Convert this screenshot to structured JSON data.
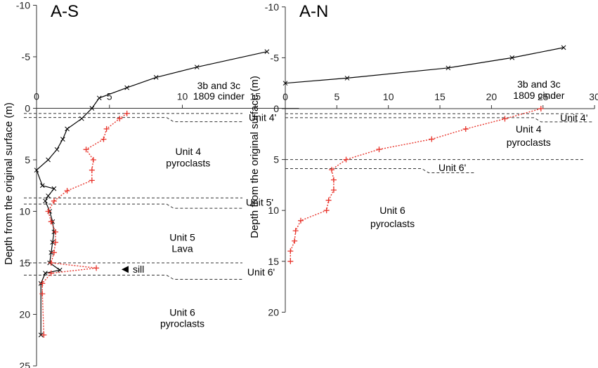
{
  "chart_data": [
    {
      "type": "line",
      "title": "A-S",
      "ylabel": "Depth from the original surface (m)",
      "xlim": [
        0,
        18
      ],
      "ylim": [
        -10,
        25
      ],
      "xticks": [
        0,
        5,
        10,
        15
      ],
      "yticks": [
        -10,
        -5,
        0,
        5,
        10,
        15,
        20,
        25
      ],
      "y_inverted": true,
      "legend": "none",
      "series": [
        {
          "color": "#000000",
          "marker": "x",
          "points": [
            [
              15.8,
              -5.5
            ],
            [
              11,
              -4
            ],
            [
              8.2,
              -3
            ],
            [
              6.2,
              -2
            ],
            [
              4.3,
              -1
            ],
            [
              3.8,
              0
            ],
            [
              3.1,
              1
            ],
            [
              2.1,
              2
            ],
            [
              1.8,
              3
            ],
            [
              1.4,
              4
            ],
            [
              0.8,
              5
            ],
            [
              0,
              6
            ],
            [
              0.4,
              7.5
            ],
            [
              1.2,
              7.8
            ],
            [
              0.8,
              8.5
            ],
            [
              0.6,
              9
            ],
            [
              0.9,
              10
            ],
            [
              1.1,
              11
            ],
            [
              1.2,
              12
            ],
            [
              1.1,
              13
            ],
            [
              1.0,
              14
            ],
            [
              0.9,
              15
            ],
            [
              1.6,
              15.7
            ],
            [
              0.6,
              16
            ],
            [
              0.3,
              17
            ],
            [
              0.3,
              22
            ]
          ]
        },
        {
          "color": "#e8352c",
          "marker": "+",
          "points": [
            [
              6.2,
              0.5
            ],
            [
              5.7,
              1
            ],
            [
              4.8,
              2
            ],
            [
              4.6,
              3
            ],
            [
              3.4,
              4
            ],
            [
              3.9,
              5
            ],
            [
              3.8,
              6
            ],
            [
              3.8,
              7
            ],
            [
              2.1,
              8
            ],
            [
              1.2,
              9
            ],
            [
              0.8,
              10
            ],
            [
              1.0,
              11
            ],
            [
              1.3,
              12
            ],
            [
              1.3,
              13
            ],
            [
              1.2,
              14
            ],
            [
              1.0,
              15
            ],
            [
              4.1,
              15.5
            ],
            [
              1.0,
              16
            ],
            [
              0.4,
              17
            ],
            [
              0.4,
              18
            ],
            [
              0.5,
              22
            ]
          ]
        }
      ],
      "annotations": [
        {
          "text": "3b and 3c",
          "x": 12.5,
          "y": -2.2
        },
        {
          "text": "1809 cinder",
          "x": 12.5,
          "y": -1.2
        },
        {
          "text": "Unit 4'",
          "x": 15.5,
          "y": 0.9
        },
        {
          "text": "Unit 4",
          "x": 10.4,
          "y": 4.2
        },
        {
          "text": "pyroclasts",
          "x": 10.4,
          "y": 5.3
        },
        {
          "text": "Unit 5'",
          "x": 15.3,
          "y": 9.1
        },
        {
          "text": "Unit 5",
          "x": 10.0,
          "y": 12.5
        },
        {
          "text": "Lava",
          "x": 10.0,
          "y": 13.6
        },
        {
          "text": "sill",
          "x": 6.6,
          "y": 15.6
        },
        {
          "text": "Unit 6'",
          "x": 15.4,
          "y": 15.9
        },
        {
          "text": "Unit 6",
          "x": 10.0,
          "y": 19.8
        },
        {
          "text": "pyroclasts",
          "x": 10.0,
          "y": 20.9
        }
      ],
      "boundaries": [
        {
          "depth_top": 0.5,
          "depth_bottom": 1.3,
          "label": "Unit 4'"
        },
        {
          "depth_top": 8.7,
          "depth_bottom": 9.7,
          "label": "Unit 5'"
        },
        {
          "depth_top": 15.0,
          "depth_bottom": 16.6,
          "label": "Unit 6'"
        }
      ]
    },
    {
      "type": "line",
      "title": "A-N",
      "ylabel": "Depth from the original surface (m)",
      "xlim": [
        0,
        30
      ],
      "ylim": [
        -10,
        20
      ],
      "xticks": [
        0,
        5,
        10,
        15,
        20,
        25,
        30
      ],
      "yticks": [
        -10,
        -5,
        0,
        5,
        10,
        15,
        20
      ],
      "y_inverted": true,
      "legend": "none",
      "series": [
        {
          "color": "#000000",
          "marker": "x",
          "points": [
            [
              0,
              -2.5
            ],
            [
              6,
              -3
            ],
            [
              15.8,
              -4
            ],
            [
              22,
              -5
            ],
            [
              27,
              -6
            ]
          ]
        },
        {
          "color": "#e8352c",
          "marker": "+",
          "points": [
            [
              24.8,
              0
            ],
            [
              21.3,
              1
            ],
            [
              17.5,
              2
            ],
            [
              14.2,
              3
            ],
            [
              9.1,
              4
            ],
            [
              5.9,
              5
            ],
            [
              4.5,
              6
            ],
            [
              4.7,
              7
            ],
            [
              4.7,
              8
            ],
            [
              4.2,
              9
            ],
            [
              4.0,
              10
            ],
            [
              1.5,
              11
            ],
            [
              1.0,
              12
            ],
            [
              0.9,
              13
            ],
            [
              0.5,
              14
            ],
            [
              0.5,
              15
            ]
          ]
        }
      ],
      "annotations": [
        {
          "text": "3b and 3c",
          "x": 24.6,
          "y": -2.4
        },
        {
          "text": "1809 cinder",
          "x": 24.6,
          "y": -1.3
        },
        {
          "text": "Unit 4'",
          "x": 28.0,
          "y": 0.9
        },
        {
          "text": "Unit 4",
          "x": 23.6,
          "y": 2.0
        },
        {
          "text": "pyroclasts",
          "x": 23.6,
          "y": 3.3
        },
        {
          "text": "Unit 6'",
          "x": 16.2,
          "y": 5.8
        },
        {
          "text": "Unit 6",
          "x": 10.4,
          "y": 10.0
        },
        {
          "text": "pyroclasts",
          "x": 10.4,
          "y": 11.3
        }
      ],
      "boundaries": [
        {
          "depth_top": 0.5,
          "depth_bottom": 1.3,
          "label": "Unit 4'"
        },
        {
          "depth_top": 5.0,
          "depth_bottom": 6.3,
          "label": "Unit 6'"
        }
      ]
    }
  ]
}
